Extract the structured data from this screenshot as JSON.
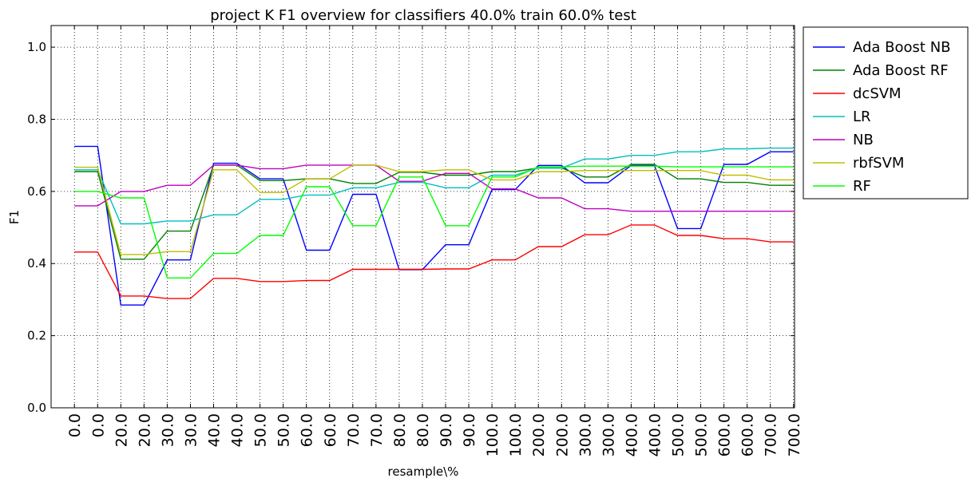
{
  "chart_data": {
    "type": "line",
    "title": "project K F1 overview for classifiers 40.0% train 60.0% test",
    "xlabel": "resample\\%",
    "ylabel": "F1",
    "ylim": [
      0.0,
      1.06
    ],
    "yticks": [
      "0.0",
      "0.2",
      "0.4",
      "0.6",
      "0.8",
      "1.0"
    ],
    "ytick_values": [
      0.0,
      0.2,
      0.4,
      0.6,
      0.8,
      1.0
    ],
    "grid": true,
    "legend_position": "outside-top-right",
    "x": [
      "0.0",
      "0.0",
      "20.0",
      "20.0",
      "30.0",
      "30.0",
      "40.0",
      "40.0",
      "50.0",
      "50.0",
      "60.0",
      "60.0",
      "70.0",
      "70.0",
      "80.0",
      "80.0",
      "90.0",
      "90.0",
      "100.0",
      "100.0",
      "200.0",
      "200.0",
      "300.0",
      "300.0",
      "400.0",
      "400.0",
      "500.0",
      "500.0",
      "600.0",
      "600.0",
      "700.0",
      "700.0"
    ],
    "series": [
      {
        "name": "Ada Boost NB",
        "color": "#0000ff",
        "values": [
          0.725,
          0.725,
          0.285,
          0.285,
          0.41,
          0.41,
          0.678,
          0.678,
          0.635,
          0.635,
          0.437,
          0.437,
          0.592,
          0.592,
          0.383,
          0.383,
          0.452,
          0.452,
          0.605,
          0.605,
          0.672,
          0.672,
          0.624,
          0.624,
          0.672,
          0.672,
          0.497,
          0.497,
          0.675,
          0.675,
          0.71,
          0.71
        ]
      },
      {
        "name": "Ada Boost RF",
        "color": "#008000",
        "values": [
          0.655,
          0.655,
          0.412,
          0.412,
          0.49,
          0.49,
          0.673,
          0.673,
          0.63,
          0.63,
          0.635,
          0.635,
          0.622,
          0.622,
          0.653,
          0.653,
          0.645,
          0.645,
          0.655,
          0.655,
          0.665,
          0.665,
          0.64,
          0.64,
          0.675,
          0.675,
          0.635,
          0.635,
          0.625,
          0.625,
          0.617,
          0.617
        ]
      },
      {
        "name": "dcSVM",
        "color": "#ff0000",
        "values": [
          0.432,
          0.432,
          0.31,
          0.31,
          0.303,
          0.303,
          0.359,
          0.359,
          0.35,
          0.35,
          0.353,
          0.353,
          0.384,
          0.384,
          0.384,
          0.384,
          0.385,
          0.385,
          0.41,
          0.41,
          0.447,
          0.447,
          0.48,
          0.48,
          0.507,
          0.507,
          0.478,
          0.478,
          0.469,
          0.469,
          0.46,
          0.46
        ]
      },
      {
        "name": "LR",
        "color": "#00bfbf",
        "values": [
          0.66,
          0.66,
          0.51,
          0.51,
          0.518,
          0.518,
          0.535,
          0.535,
          0.578,
          0.578,
          0.59,
          0.59,
          0.61,
          0.61,
          0.625,
          0.625,
          0.61,
          0.61,
          0.645,
          0.645,
          0.665,
          0.665,
          0.69,
          0.69,
          0.7,
          0.7,
          0.71,
          0.71,
          0.718,
          0.718,
          0.72,
          0.72
        ]
      },
      {
        "name": "NB",
        "color": "#bf00bf",
        "values": [
          0.56,
          0.56,
          0.6,
          0.6,
          0.617,
          0.617,
          0.673,
          0.673,
          0.663,
          0.663,
          0.673,
          0.673,
          0.673,
          0.673,
          0.628,
          0.628,
          0.65,
          0.65,
          0.607,
          0.607,
          0.582,
          0.582,
          0.552,
          0.552,
          0.545,
          0.545,
          0.545,
          0.545,
          0.545,
          0.545,
          0.545,
          0.545
        ]
      },
      {
        "name": "rbfSVM",
        "color": "#bfbf00",
        "values": [
          0.667,
          0.667,
          0.425,
          0.425,
          0.433,
          0.433,
          0.66,
          0.66,
          0.597,
          0.597,
          0.635,
          0.635,
          0.673,
          0.673,
          0.655,
          0.655,
          0.66,
          0.66,
          0.632,
          0.632,
          0.655,
          0.655,
          0.658,
          0.658,
          0.658,
          0.658,
          0.658,
          0.658,
          0.645,
          0.645,
          0.632,
          0.632
        ]
      },
      {
        "name": "RF",
        "color": "#00ff00",
        "values": [
          0.6,
          0.6,
          0.582,
          0.582,
          0.36,
          0.36,
          0.428,
          0.428,
          0.478,
          0.478,
          0.613,
          0.613,
          0.505,
          0.505,
          0.64,
          0.64,
          0.505,
          0.505,
          0.64,
          0.64,
          0.668,
          0.668,
          0.67,
          0.67,
          0.67,
          0.67,
          0.668,
          0.668,
          0.668,
          0.668,
          0.668,
          0.668
        ]
      }
    ]
  }
}
